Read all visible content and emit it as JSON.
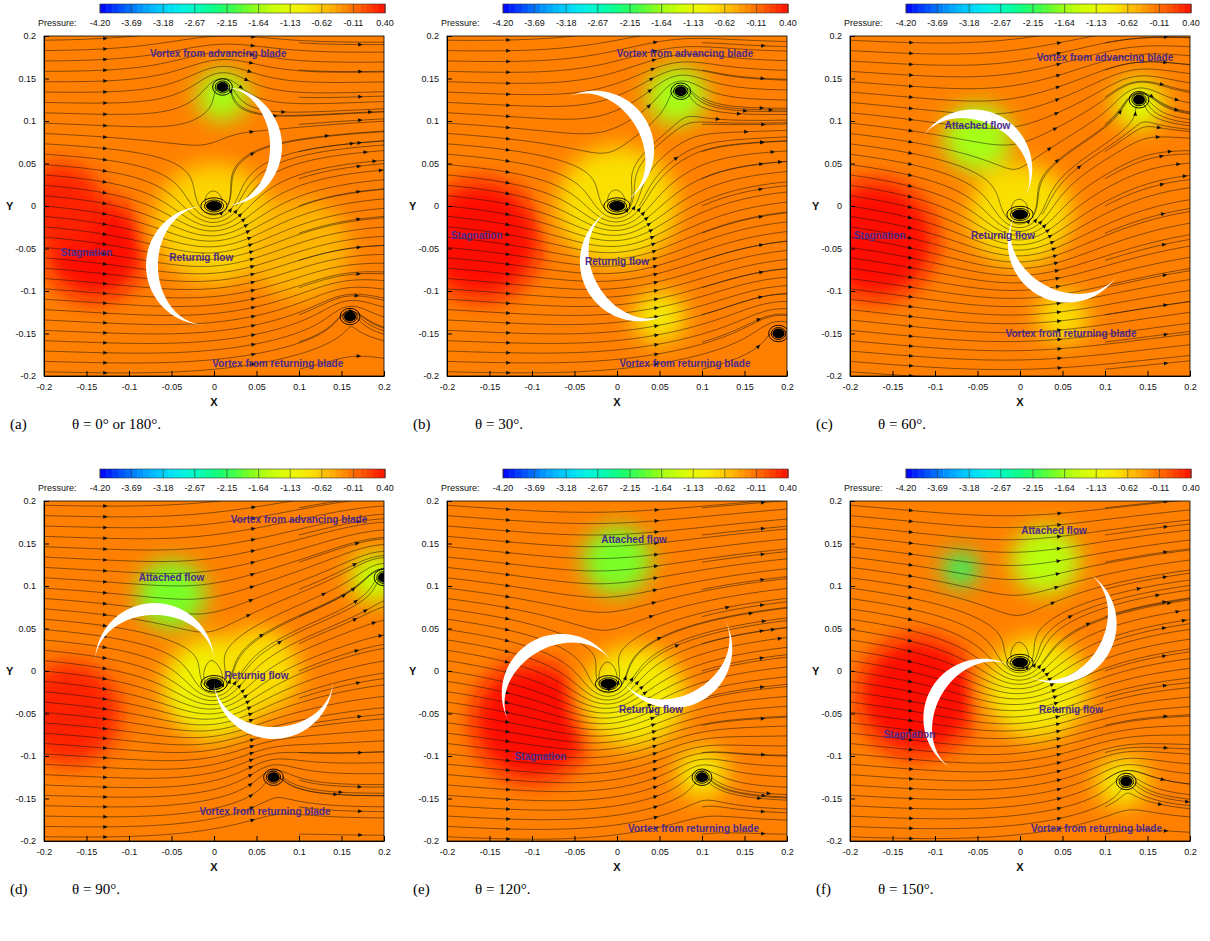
{
  "chart_data": [
    {
      "type": "contour",
      "label": "(a)",
      "caption": "θ = 0° or 180°.",
      "theta": 0,
      "xlabel": "X",
      "ylabel": "Y",
      "xlim": [
        -0.2,
        0.2
      ],
      "ylim": [
        -0.2,
        0.2
      ],
      "xticks": [
        -0.2,
        -0.15,
        -0.1,
        -0.05,
        0,
        0.05,
        0.1,
        0.15,
        0.2
      ],
      "yticks": [
        -0.2,
        -0.15,
        -0.1,
        -0.05,
        0,
        0.05,
        0.1,
        0.15,
        0.2
      ],
      "colorbar": {
        "title": "Pressure:",
        "range": [
          -4.2,
          0.4
        ],
        "ticks": [
          {
            "value": -4.2,
            "label": "-4.20"
          },
          {
            "value": -3.69,
            "label": "-3.69"
          },
          {
            "value": -3.18,
            "label": "-3.18"
          },
          {
            "value": -2.67,
            "label": "-2.67"
          },
          {
            "value": -2.15,
            "label": "-2.15"
          },
          {
            "value": -1.64,
            "label": "-1.64"
          },
          {
            "value": -1.13,
            "label": "-1.13"
          },
          {
            "value": -0.62,
            "label": "-0.62"
          },
          {
            "value": -0.11,
            "label": "-0.11"
          },
          {
            "value": 0.4,
            "label": "0.40"
          }
        ],
        "colors": [
          "#0000ff",
          "#00a0ff",
          "#00ffff",
          "#00ff60",
          "#c0ff00",
          "#ffff00",
          "#ff8c00",
          "#ff1000"
        ]
      },
      "ambient_pressure": -0.2,
      "pressure_regions": [
        {
          "x": -0.14,
          "y": -0.05,
          "radius": 0.06,
          "pressure": 0.4
        },
        {
          "x": -0.18,
          "y": 0.0,
          "radius": 0.05,
          "pressure": 0.3
        },
        {
          "x": 0.01,
          "y": 0.13,
          "radius": 0.03,
          "pressure": -1.6
        },
        {
          "x": 0.0,
          "y": -0.02,
          "radius": 0.07,
          "pressure": -0.7
        },
        {
          "x": 0.1,
          "y": -0.05,
          "radius": 0.06,
          "pressure": -0.5
        }
      ],
      "vortices": [
        {
          "x": 0.01,
          "y": 0.14
        },
        {
          "x": 0.0,
          "y": 0.0
        },
        {
          "x": 0.16,
          "y": -0.13
        }
      ],
      "annotations": [
        {
          "text": "Vortex from advancing blade",
          "x": 0.005,
          "y": 0.18
        },
        {
          "text": "Stagnation",
          "x": -0.15,
          "y": -0.055
        },
        {
          "text": "Returnig flow",
          "x": -0.015,
          "y": -0.06
        },
        {
          "text": "Vortex from returning blade",
          "x": 0.075,
          "y": -0.185
        }
      ]
    },
    {
      "type": "contour",
      "label": "(b)",
      "caption": "θ = 30°.",
      "theta": 30,
      "xlabel": "X",
      "ylabel": "Y",
      "xlim": [
        -0.2,
        0.2
      ],
      "ylim": [
        -0.2,
        0.2
      ],
      "xticks": [
        -0.2,
        -0.15,
        -0.1,
        -0.05,
        0,
        0.05,
        0.1,
        0.15,
        0.2
      ],
      "yticks": [
        -0.2,
        -0.15,
        -0.1,
        -0.05,
        0,
        0.05,
        0.1,
        0.15,
        0.2
      ],
      "colorbar": {
        "title": "Pressure:",
        "range": [
          -4.2,
          0.4
        ],
        "ticks": [
          {
            "value": -4.2,
            "label": "-4.20"
          },
          {
            "value": -3.69,
            "label": "-3.69"
          },
          {
            "value": -3.18,
            "label": "-3.18"
          },
          {
            "value": -2.67,
            "label": "-2.67"
          },
          {
            "value": -2.15,
            "label": "-2.15"
          },
          {
            "value": -1.64,
            "label": "-1.64"
          },
          {
            "value": -1.13,
            "label": "-1.13"
          },
          {
            "value": -0.62,
            "label": "-0.62"
          },
          {
            "value": -0.11,
            "label": "-0.11"
          },
          {
            "value": 0.4,
            "label": "0.40"
          }
        ],
        "colors": [
          "#0000ff",
          "#00a0ff",
          "#00ffff",
          "#00ff60",
          "#c0ff00",
          "#ffff00",
          "#ff8c00",
          "#ff1000"
        ]
      },
      "ambient_pressure": -0.2,
      "pressure_regions": [
        {
          "x": -0.16,
          "y": -0.04,
          "radius": 0.07,
          "pressure": 0.4
        },
        {
          "x": 0.07,
          "y": 0.13,
          "radius": 0.035,
          "pressure": -1.6
        },
        {
          "x": 0.0,
          "y": 0.0,
          "radius": 0.07,
          "pressure": -0.8
        },
        {
          "x": 0.05,
          "y": -0.13,
          "radius": 0.03,
          "pressure": -0.9
        }
      ],
      "vortices": [
        {
          "x": 0.075,
          "y": 0.135
        },
        {
          "x": 0.0,
          "y": 0.0
        },
        {
          "x": 0.19,
          "y": -0.15
        }
      ],
      "annotations": [
        {
          "text": "Vortex from advancing blade",
          "x": 0.08,
          "y": 0.18
        },
        {
          "text": "Stagnation",
          "x": -0.165,
          "y": -0.035
        },
        {
          "text": "Returnig flow",
          "x": 0.0,
          "y": -0.065
        },
        {
          "text": "Vortex from returning blade",
          "x": 0.08,
          "y": -0.185
        }
      ]
    },
    {
      "type": "contour",
      "label": "(c)",
      "caption": "θ = 60°.",
      "theta": 60,
      "xlabel": "X",
      "ylabel": "Y",
      "xlim": [
        -0.2,
        0.2
      ],
      "ylim": [
        -0.2,
        0.2
      ],
      "xticks": [
        -0.2,
        -0.15,
        -0.1,
        -0.05,
        0,
        0.05,
        0.1,
        0.15,
        0.2
      ],
      "yticks": [
        -0.2,
        -0.15,
        -0.1,
        -0.05,
        0,
        0.05,
        0.1,
        0.15,
        0.2
      ],
      "colorbar": {
        "title": "Pressure:",
        "range": [
          -4.2,
          0.4
        ],
        "ticks": [
          {
            "value": -4.2,
            "label": "-4.20"
          },
          {
            "value": -3.69,
            "label": "-3.69"
          },
          {
            "value": -3.18,
            "label": "-3.18"
          },
          {
            "value": -2.67,
            "label": "-2.67"
          },
          {
            "value": -2.15,
            "label": "-2.15"
          },
          {
            "value": -1.64,
            "label": "-1.64"
          },
          {
            "value": -1.13,
            "label": "-1.13"
          },
          {
            "value": -0.62,
            "label": "-0.62"
          },
          {
            "value": -0.11,
            "label": "-0.11"
          },
          {
            "value": 0.4,
            "label": "0.40"
          }
        ],
        "colors": [
          "#0000ff",
          "#00a0ff",
          "#00ffff",
          "#00ff60",
          "#c0ff00",
          "#ffff00",
          "#ff8c00",
          "#ff1000"
        ]
      },
      "ambient_pressure": -0.2,
      "pressure_regions": [
        {
          "x": -0.17,
          "y": -0.04,
          "radius": 0.07,
          "pressure": 0.4
        },
        {
          "x": -0.05,
          "y": 0.08,
          "radius": 0.04,
          "pressure": -1.6
        },
        {
          "x": 0.0,
          "y": -0.01,
          "radius": 0.06,
          "pressure": -0.8
        },
        {
          "x": 0.14,
          "y": 0.12,
          "radius": 0.03,
          "pressure": -1.2
        },
        {
          "x": 0.05,
          "y": -0.13,
          "radius": 0.03,
          "pressure": -0.8
        }
      ],
      "vortices": [
        {
          "x": 0.14,
          "y": 0.125
        },
        {
          "x": 0.0,
          "y": -0.01
        }
      ],
      "annotations": [
        {
          "text": "Vortex from advancing blade",
          "x": 0.1,
          "y": 0.175
        },
        {
          "text": "Attached flow",
          "x": -0.05,
          "y": 0.095
        },
        {
          "text": "Stagnation",
          "x": -0.165,
          "y": -0.035
        },
        {
          "text": "Returnig flow",
          "x": -0.02,
          "y": -0.035
        },
        {
          "text": "Vortex from returning blade",
          "x": 0.06,
          "y": -0.15
        }
      ]
    },
    {
      "type": "contour",
      "label": "(d)",
      "caption": "θ = 90°.",
      "theta": 90,
      "xlabel": "X",
      "ylabel": "Y",
      "xlim": [
        -0.2,
        0.2
      ],
      "ylim": [
        -0.2,
        0.2
      ],
      "xticks": [
        -0.2,
        -0.15,
        -0.1,
        -0.05,
        0,
        0.05,
        0.1,
        0.15,
        0.2
      ],
      "yticks": [
        -0.2,
        -0.15,
        -0.1,
        -0.05,
        0,
        0.05,
        0.1,
        0.15,
        0.2
      ],
      "colorbar": {
        "title": "Pressure:",
        "range": [
          -4.2,
          0.4
        ],
        "ticks": [
          {
            "value": -4.2,
            "label": "-4.20"
          },
          {
            "value": -3.69,
            "label": "-3.69"
          },
          {
            "value": -3.18,
            "label": "-3.18"
          },
          {
            "value": -2.67,
            "label": "-2.67"
          },
          {
            "value": -2.15,
            "label": "-2.15"
          },
          {
            "value": -1.64,
            "label": "-1.64"
          },
          {
            "value": -1.13,
            "label": "-1.13"
          },
          {
            "value": -0.62,
            "label": "-0.62"
          },
          {
            "value": -0.11,
            "label": "-0.11"
          },
          {
            "value": 0.4,
            "label": "0.40"
          }
        ],
        "colors": [
          "#0000ff",
          "#00a0ff",
          "#00ffff",
          "#00ff60",
          "#c0ff00",
          "#ffff00",
          "#ff8c00",
          "#ff1000"
        ]
      },
      "ambient_pressure": -0.2,
      "pressure_regions": [
        {
          "x": -0.17,
          "y": -0.05,
          "radius": 0.06,
          "pressure": 0.3
        },
        {
          "x": -0.05,
          "y": 0.09,
          "radius": 0.04,
          "pressure": -1.8
        },
        {
          "x": 0.0,
          "y": -0.02,
          "radius": 0.06,
          "pressure": -1.0
        },
        {
          "x": 0.05,
          "y": 0.0,
          "radius": 0.05,
          "pressure": -0.8
        },
        {
          "x": 0.19,
          "y": 0.11,
          "radius": 0.03,
          "pressure": -1.4
        }
      ],
      "vortices": [
        {
          "x": 0.0,
          "y": -0.015
        },
        {
          "x": 0.2,
          "y": 0.11
        },
        {
          "x": 0.07,
          "y": -0.125
        }
      ],
      "annotations": [
        {
          "text": "Vortex from advancing blade",
          "x": 0.1,
          "y": 0.178
        },
        {
          "text": "Attached flow",
          "x": -0.05,
          "y": 0.11
        },
        {
          "text": "Returnig flow",
          "x": 0.05,
          "y": -0.005
        },
        {
          "text": "Vortex from returning blade",
          "x": 0.06,
          "y": -0.165
        }
      ]
    },
    {
      "type": "contour",
      "label": "(e)",
      "caption": "θ = 120°.",
      "theta": 120,
      "xlabel": "X",
      "ylabel": "Y",
      "xlim": [
        -0.2,
        0.2
      ],
      "ylim": [
        -0.2,
        0.2
      ],
      "xticks": [
        -0.2,
        -0.15,
        -0.1,
        -0.05,
        0,
        0.05,
        0.1,
        0.15,
        0.2
      ],
      "yticks": [
        -0.2,
        -0.15,
        -0.1,
        -0.05,
        0,
        0.05,
        0.1,
        0.15,
        0.2
      ],
      "colorbar": {
        "title": "Pressure:",
        "range": [
          -4.2,
          0.4
        ],
        "ticks": [
          {
            "value": -4.2,
            "label": "-4.20"
          },
          {
            "value": -3.69,
            "label": "-3.69"
          },
          {
            "value": -3.18,
            "label": "-3.18"
          },
          {
            "value": -2.67,
            "label": "-2.67"
          },
          {
            "value": -2.15,
            "label": "-2.15"
          },
          {
            "value": -1.64,
            "label": "-1.64"
          },
          {
            "value": -1.13,
            "label": "-1.13"
          },
          {
            "value": -0.62,
            "label": "-0.62"
          },
          {
            "value": -0.11,
            "label": "-0.11"
          },
          {
            "value": 0.4,
            "label": "0.40"
          }
        ],
        "colors": [
          "#0000ff",
          "#00a0ff",
          "#00ffff",
          "#00ff60",
          "#c0ff00",
          "#ffff00",
          "#ff8c00",
          "#ff1000"
        ]
      },
      "ambient_pressure": -0.2,
      "pressure_regions": [
        {
          "x": -0.1,
          "y": -0.06,
          "radius": 0.07,
          "pressure": 0.4
        },
        {
          "x": 0.0,
          "y": 0.13,
          "radius": 0.04,
          "pressure": -1.8
        },
        {
          "x": 0.02,
          "y": -0.03,
          "radius": 0.06,
          "pressure": -0.9
        },
        {
          "x": 0.1,
          "y": -0.12,
          "radius": 0.03,
          "pressure": -0.9
        }
      ],
      "vortices": [
        {
          "x": -0.01,
          "y": -0.015
        },
        {
          "x": 0.1,
          "y": -0.125
        }
      ],
      "annotations": [
        {
          "text": "Attached flow",
          "x": 0.02,
          "y": 0.155
        },
        {
          "text": "Returnig flow",
          "x": 0.04,
          "y": -0.045
        },
        {
          "text": "Stagnation",
          "x": -0.09,
          "y": -0.1
        },
        {
          "text": "Vortex from returning blade",
          "x": 0.09,
          "y": -0.185
        }
      ]
    },
    {
      "type": "contour",
      "label": "(f)",
      "caption": "θ = 150°.",
      "theta": 150,
      "xlabel": "X",
      "ylabel": "Y",
      "xlim": [
        -0.2,
        0.2
      ],
      "ylim": [
        -0.2,
        0.2
      ],
      "xticks": [
        -0.2,
        -0.15,
        -0.1,
        -0.05,
        0,
        0.05,
        0.1,
        0.15,
        0.2
      ],
      "yticks": [
        -0.2,
        -0.15,
        -0.1,
        -0.05,
        0,
        0.05,
        0.1,
        0.15,
        0.2
      ],
      "colorbar": {
        "title": "Pressure:",
        "range": [
          -4.2,
          0.4
        ],
        "ticks": [
          {
            "value": -4.2,
            "label": "-4.20"
          },
          {
            "value": -3.69,
            "label": "-3.69"
          },
          {
            "value": -3.18,
            "label": "-3.18"
          },
          {
            "value": -2.67,
            "label": "-2.67"
          },
          {
            "value": -2.15,
            "label": "-2.15"
          },
          {
            "value": -1.64,
            "label": "-1.64"
          },
          {
            "value": -1.13,
            "label": "-1.13"
          },
          {
            "value": -0.62,
            "label": "-0.62"
          },
          {
            "value": -0.11,
            "label": "-0.11"
          },
          {
            "value": 0.4,
            "label": "0.40"
          }
        ],
        "colors": [
          "#0000ff",
          "#00a0ff",
          "#00ffff",
          "#00ff60",
          "#c0ff00",
          "#ffff00",
          "#ff8c00",
          "#ff1000"
        ]
      },
      "ambient_pressure": -0.2,
      "pressure_regions": [
        {
          "x": -0.12,
          "y": -0.03,
          "radius": 0.07,
          "pressure": 0.4
        },
        {
          "x": -0.07,
          "y": 0.12,
          "radius": 0.02,
          "pressure": -2.2
        },
        {
          "x": 0.03,
          "y": 0.13,
          "radius": 0.04,
          "pressure": -1.5
        },
        {
          "x": 0.02,
          "y": -0.02,
          "radius": 0.06,
          "pressure": -0.9
        },
        {
          "x": 0.12,
          "y": -0.13,
          "radius": 0.03,
          "pressure": -0.9
        }
      ],
      "vortices": [
        {
          "x": 0.0,
          "y": 0.01
        },
        {
          "x": 0.125,
          "y": -0.13
        }
      ],
      "annotations": [
        {
          "text": "Attached flow",
          "x": 0.04,
          "y": 0.165
        },
        {
          "text": "Returnig flow",
          "x": 0.06,
          "y": -0.045
        },
        {
          "text": "Stagnation",
          "x": -0.13,
          "y": -0.075
        },
        {
          "text": "Vortex from returning blade",
          "x": 0.09,
          "y": -0.185
        }
      ]
    }
  ]
}
